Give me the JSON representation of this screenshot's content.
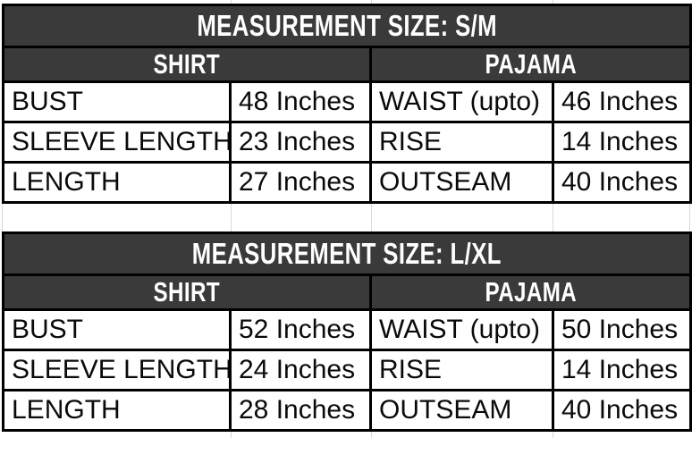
{
  "colors": {
    "header_bg": "#3a3a3a",
    "header_text": "#ffffff",
    "body_text": "#0a0a0a",
    "border": "#000000",
    "gridline": "#d9d9d9",
    "background": "#ffffff"
  },
  "tables": [
    {
      "title": "MEASUREMENT SIZE: S/M",
      "sections": [
        "SHIRT",
        "PAJAMA"
      ],
      "rows": [
        {
          "cells": [
            "BUST",
            "48 Inches",
            "WAIST (upto)",
            "46 Inches"
          ]
        },
        {
          "cells": [
            "SLEEVE LENGTH",
            "23 Inches",
            "RISE",
            "14 Inches"
          ]
        },
        {
          "cells": [
            "LENGTH",
            "27 Inches",
            "OUTSEAM",
            "40 Inches"
          ]
        }
      ]
    },
    {
      "title": "MEASUREMENT SIZE: L/XL",
      "sections": [
        "SHIRT",
        "PAJAMA"
      ],
      "rows": [
        {
          "cells": [
            "BUST",
            "52 Inches",
            "WAIST (upto)",
            "50 Inches"
          ]
        },
        {
          "cells": [
            "SLEEVE LENGTH",
            "24 Inches",
            "RISE",
            "14 Inches"
          ]
        },
        {
          "cells": [
            "LENGTH",
            "28 Inches",
            "OUTSEAM",
            "40 Inches"
          ]
        }
      ]
    }
  ]
}
